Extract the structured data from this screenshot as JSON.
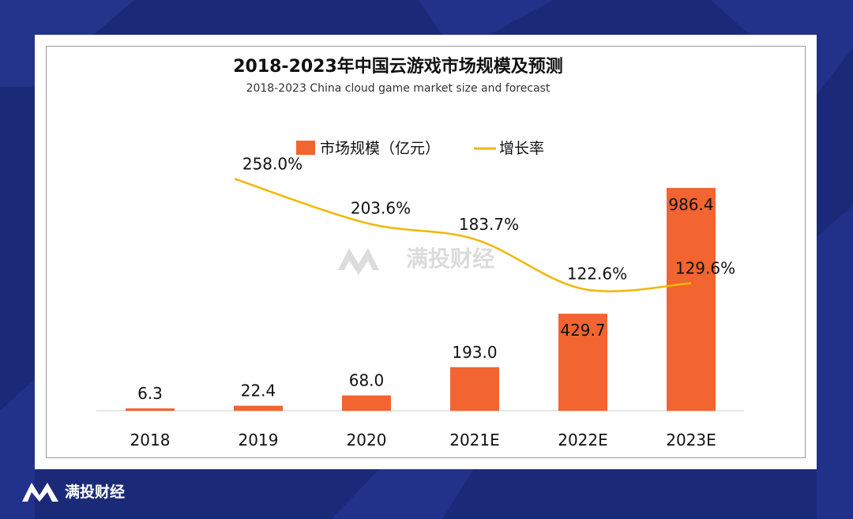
{
  "brand": {
    "name": "满投财经",
    "watermark": "满投财经",
    "colors": {
      "background": "#1b2a78",
      "bar": "#f26430",
      "line": "#f2b705"
    }
  },
  "chart_data": {
    "type": "bar",
    "title": "2018-2023年中国云游戏市场规模及预测",
    "subtitle": "2018-2023 China cloud game market size and forecast",
    "categories": [
      "2018",
      "2019",
      "2020",
      "2021E",
      "2022E",
      "2023E"
    ],
    "series": [
      {
        "name": "市场规模（亿元）",
        "kind": "bar",
        "values": [
          6.3,
          22.4,
          68.0,
          193.0,
          429.7,
          986.4
        ],
        "labels": [
          "6.3",
          "22.4",
          "68.0",
          "193.0",
          "429.7",
          "986.4"
        ]
      },
      {
        "name": "增长率",
        "kind": "line",
        "x": [
          "2019",
          "2020",
          "2021E",
          "2022E",
          "2023E"
        ],
        "values": [
          258.0,
          203.6,
          183.7,
          122.6,
          129.6
        ],
        "labels": [
          "258.0%",
          "203.6%",
          "183.7%",
          "122.6%",
          "129.6%"
        ]
      }
    ],
    "xlabel": "",
    "ylabel": "",
    "ylim": [
      0,
      1000
    ],
    "grid": false,
    "legend": "top-center"
  }
}
